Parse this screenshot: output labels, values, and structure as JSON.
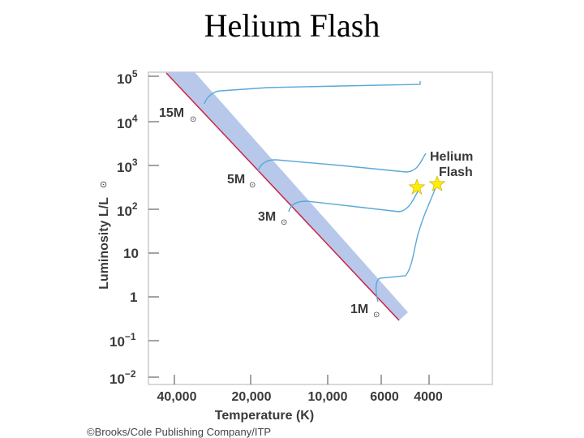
{
  "title": "Helium Flash",
  "diagram": {
    "y_axis_label": "Luminosity L/L",
    "y_axis_unit_symbol": "⊙",
    "x_axis_label": "Temperature (K)",
    "y_ticks": [
      {
        "base": "10",
        "exp": "5"
      },
      {
        "base": "10",
        "exp": "4"
      },
      {
        "base": "10",
        "exp": "3"
      },
      {
        "base": "10",
        "exp": "2"
      },
      {
        "base": "10",
        "exp": ""
      },
      {
        "base": "1",
        "exp": ""
      },
      {
        "base": "10",
        "exp": "−1"
      },
      {
        "base": "10",
        "exp": "−2"
      }
    ],
    "x_ticks": [
      "40,000",
      "20,000",
      "10,000",
      "6000",
      "4000"
    ],
    "mass_labels": [
      "15M",
      "5M",
      "3M",
      "1M"
    ],
    "annotation": {
      "line1": "Helium",
      "line2": "Flash"
    },
    "colors": {
      "main_sequence_band": "#b8c8ea",
      "main_sequence_line": "#cc2244",
      "tracks": "#5aa8d8",
      "star": "#ffee00",
      "frame": "#cccccc"
    }
  },
  "credit": "©Brooks/Cole Publishing Company/ITP"
}
